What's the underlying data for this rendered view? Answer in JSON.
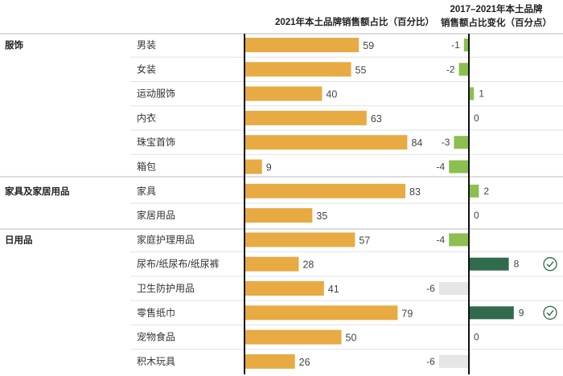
{
  "chart_data": {
    "type": "bar",
    "title_left": "2021年本土品牌销售额占比（百分比）",
    "title_right_line1": "2017–2021年本土品牌",
    "title_right_line2": "销售额占比变化（百分点）",
    "groups": [
      {
        "name": "服饰",
        "items": [
          "男装",
          "女装",
          "运动服饰",
          "内衣",
          "珠宝首饰",
          "箱包"
        ]
      },
      {
        "name": "家具及家居用品",
        "items": [
          "家具",
          "家居用品"
        ]
      },
      {
        "name": "日用品",
        "items": [
          "家庭护理用品",
          "尿布/纸尿布/纸尿裤",
          "卫生防护用品",
          "零售纸巾",
          "宠物食品",
          "积木玩具"
        ]
      }
    ],
    "categories": [
      "男装",
      "女装",
      "运动服饰",
      "内衣",
      "珠宝首饰",
      "箱包",
      "家具",
      "家居用品",
      "家庭护理用品",
      "尿布/纸尿布/纸尿裤",
      "卫生防护用品",
      "零售纸巾",
      "宠物食品",
      "积木玩具"
    ],
    "series": [
      {
        "name": "2021年本土品牌销售额占比（百分比）",
        "values": [
          59,
          55,
          40,
          63,
          84,
          9,
          83,
          35,
          57,
          28,
          41,
          79,
          50,
          26
        ]
      },
      {
        "name": "2017–2021年本土品牌销售额占比变化（百分点）",
        "values": [
          -1,
          -2,
          1,
          0,
          -3,
          -4,
          2,
          0,
          -4,
          8,
          -6,
          9,
          0,
          -6
        ]
      }
    ],
    "change_styles": [
      "light",
      "light",
      "light",
      "light",
      "light",
      "light",
      "light",
      "light",
      "light",
      "dark",
      "grey",
      "dark",
      "light",
      "grey"
    ],
    "highlighted": [
      "尿布/纸尿布/纸尿裤",
      "零售纸巾"
    ],
    "xlim_share": [
      0,
      100
    ],
    "xlim_change": [
      -6,
      9
    ],
    "colors": {
      "share_bar": "#E8AA42",
      "change_light": "#8CBF4F",
      "change_dark": "#2F6B4C",
      "change_grey": "#E6E6E6",
      "axis": "#111111",
      "divider": "#BBBBBB",
      "row_line": "#E2E2E2"
    }
  }
}
